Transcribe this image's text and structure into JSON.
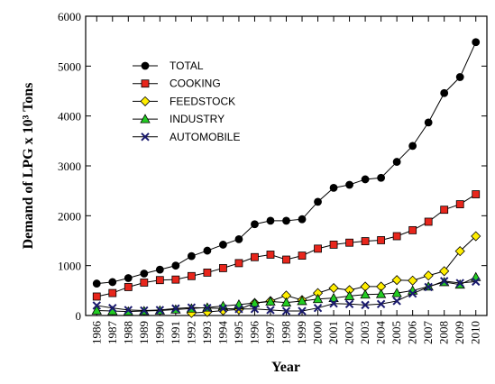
{
  "chart_data": {
    "type": "line",
    "xlabel": "Year",
    "ylabel": "Demand of LPG x 10³ Tons",
    "x": [
      1986,
      1987,
      1988,
      1989,
      1990,
      1991,
      1992,
      1993,
      1994,
      1995,
      1996,
      1997,
      1998,
      1999,
      2000,
      2001,
      2002,
      2003,
      2004,
      2005,
      2006,
      2007,
      2008,
      2009,
      2010
    ],
    "xlim": [
      1985.3,
      2010.7
    ],
    "xticks": [
      1986,
      1987,
      1988,
      1989,
      1990,
      1991,
      1992,
      1993,
      1994,
      1995,
      1996,
      1997,
      1998,
      1999,
      2000,
      2001,
      2002,
      2003,
      2004,
      2005,
      2006,
      2007,
      2008,
      2009,
      2010
    ],
    "ylim": [
      0,
      6000
    ],
    "yticks": [
      0,
      1000,
      2000,
      3000,
      4000,
      5000,
      6000
    ],
    "series": [
      {
        "name": "TOTAL",
        "color": "#000000",
        "marker": "circle",
        "values": [
          640,
          670,
          750,
          840,
          920,
          1000,
          1190,
          1300,
          1420,
          1530,
          1830,
          1900,
          1900,
          1930,
          2280,
          2560,
          2620,
          2730,
          2760,
          3080,
          3400,
          3870,
          4460,
          4780,
          5480
        ]
      },
      {
        "name": "COOKING",
        "color": "#e8261c",
        "marker": "square",
        "values": [
          380,
          450,
          570,
          660,
          710,
          720,
          790,
          860,
          950,
          1050,
          1170,
          1220,
          1120,
          1200,
          1340,
          1420,
          1460,
          1490,
          1510,
          1590,
          1710,
          1880,
          2120,
          2230,
          2430
        ]
      },
      {
        "name": "FEEDSTOCK",
        "color": "#ffee00",
        "marker": "diamond",
        "values": [
          null,
          null,
          null,
          null,
          null,
          null,
          50,
          70,
          100,
          120,
          250,
          290,
          400,
          310,
          450,
          550,
          510,
          580,
          580,
          710,
          700,
          800,
          890,
          1290,
          1590
        ]
      },
      {
        "name": "INDUSTRY",
        "color": "#22cc22",
        "marker": "triangle",
        "values": [
          100,
          90,
          80,
          90,
          100,
          120,
          140,
          160,
          190,
          220,
          250,
          280,
          260,
          290,
          330,
          350,
          390,
          420,
          430,
          450,
          500,
          580,
          670,
          620,
          770
        ]
      },
      {
        "name": "AUTOMOBILE",
        "color": "#1a1a6e",
        "marker": "cross",
        "values": [
          200,
          150,
          110,
          100,
          110,
          140,
          160,
          150,
          140,
          130,
          130,
          110,
          90,
          90,
          150,
          240,
          230,
          210,
          230,
          290,
          440,
          570,
          690,
          650,
          680
        ]
      }
    ]
  }
}
